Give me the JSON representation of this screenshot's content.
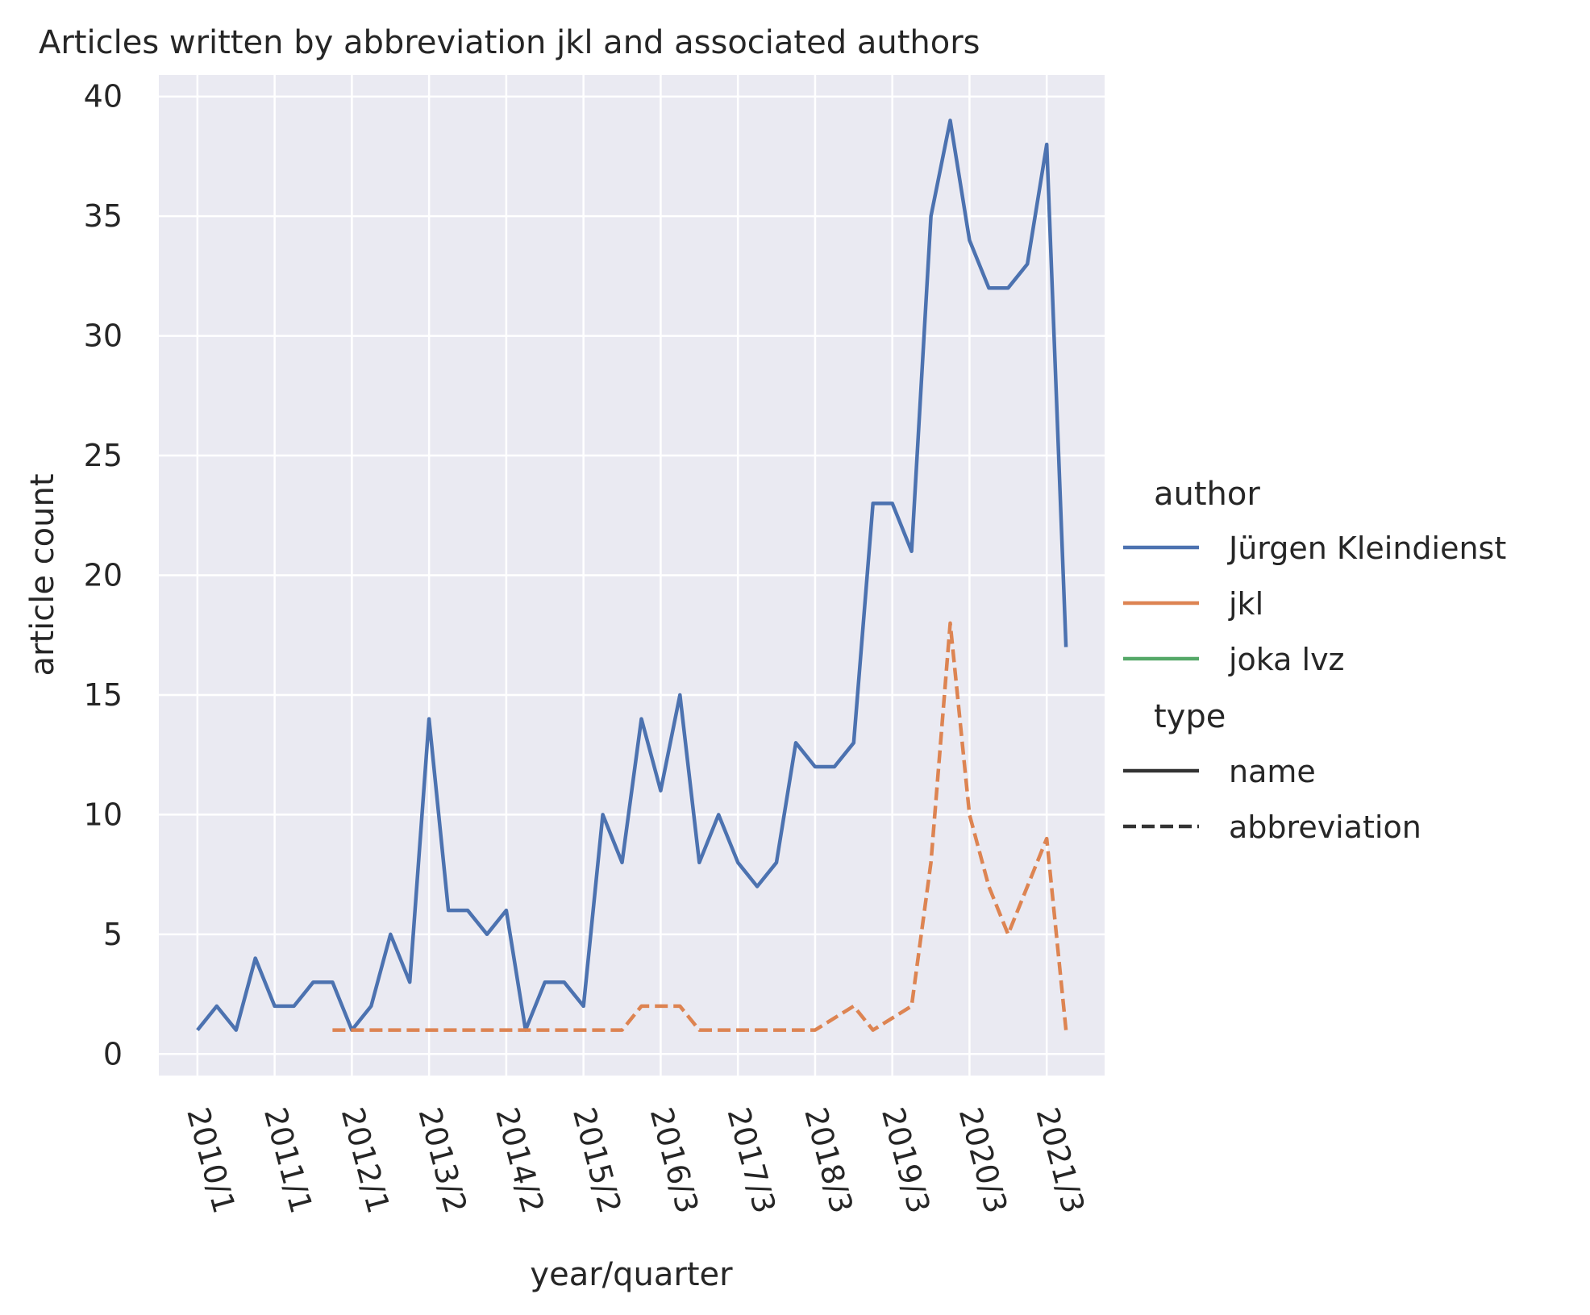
{
  "chart_data": {
    "type": "line",
    "title": "Articles written by abbreviation jkl and associated authors",
    "xlabel": "year/quarter",
    "ylabel": "article count",
    "x_tick_labels": [
      "2010/1",
      "2011/1",
      "2012/1",
      "2013/2",
      "2014/2",
      "2015/2",
      "2016/3",
      "2017/3",
      "2018/3",
      "2019/3",
      "2020/3",
      "2021/3"
    ],
    "x_tick_index": [
      0,
      4,
      8,
      12,
      16,
      20,
      24,
      28,
      32,
      36,
      40,
      44
    ],
    "x_range": [
      -2,
      47
    ],
    "ylim": [
      -0.9,
      40.9
    ],
    "y_ticks": [
      0,
      5,
      10,
      15,
      20,
      25,
      30,
      35,
      40
    ],
    "grid": true,
    "legend_position": "right",
    "legend": {
      "author_title": "author",
      "type_title": "type",
      "authors": [
        {
          "name": "Jürgen Kleindienst",
          "color": "#4c72b0"
        },
        {
          "name": "jkl",
          "color": "#dd8452"
        },
        {
          "name": "joka lvz",
          "color": "#55a868"
        }
      ],
      "types": [
        {
          "name": "name",
          "style": "solid"
        },
        {
          "name": "abbreviation",
          "style": "dashed"
        }
      ]
    },
    "series": [
      {
        "author": "Jürgen Kleindienst",
        "type": "name",
        "color": "#4c72b0",
        "style": "solid",
        "x_index": [
          0,
          1,
          2,
          3,
          4,
          5,
          6,
          7,
          8,
          9,
          10,
          11,
          12,
          13,
          14,
          15,
          16,
          17,
          18,
          19,
          20,
          21,
          22,
          23,
          24,
          25,
          26,
          27,
          28,
          29,
          30,
          31,
          32,
          33,
          34,
          35,
          36,
          37,
          38,
          39,
          40,
          41,
          42,
          43,
          44,
          45
        ],
        "values": [
          1,
          2,
          1,
          4,
          2,
          2,
          3,
          3,
          1,
          2,
          5,
          3,
          14,
          6,
          6,
          5,
          6,
          1,
          3,
          3,
          2,
          10,
          8,
          14,
          11,
          15,
          8,
          10,
          8,
          7,
          8,
          13,
          12,
          12,
          13,
          23,
          23,
          21,
          35,
          39,
          34,
          32,
          32,
          33,
          38,
          17
        ]
      },
      {
        "author": "jkl",
        "type": "abbreviation",
        "color": "#dd8452",
        "style": "dashed",
        "x_index": [
          7,
          8,
          9,
          10,
          11,
          12,
          13,
          14,
          15,
          16,
          17,
          18,
          19,
          20,
          21,
          22,
          23,
          24,
          25,
          26,
          27,
          28,
          29,
          30,
          31,
          32,
          33,
          34,
          35,
          36,
          37,
          38,
          39,
          40,
          41,
          42,
          43,
          44,
          45
        ],
        "values": [
          1,
          1,
          1,
          1,
          1,
          1,
          1,
          1,
          1,
          1,
          1,
          1,
          1,
          1,
          1,
          1,
          2,
          2,
          2,
          1,
          1,
          1,
          1,
          1,
          1,
          1,
          1.5,
          2,
          1,
          1.5,
          2,
          8,
          18,
          10,
          7,
          5,
          7,
          9,
          1
        ]
      }
    ]
  }
}
